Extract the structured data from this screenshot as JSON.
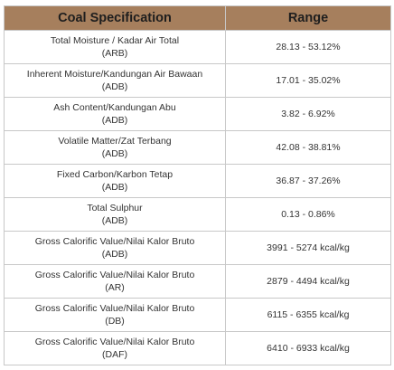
{
  "table": {
    "headers": {
      "parameter": "Coal Specification",
      "range": "Range"
    },
    "rows": [
      {
        "name": "Total  Moisture / Kadar Air Total",
        "basis": "(ARB)",
        "range": "28.13 - 53.12%"
      },
      {
        "name": "Inherent Moisture/Kandungan Air Bawaan",
        "basis": "(ADB)",
        "range": "17.01 - 35.02%"
      },
      {
        "name": "Ash Content/Kandungan Abu",
        "basis": "(ADB)",
        "range": "3.82 - 6.92%"
      },
      {
        "name": "Volatile Matter/Zat Terbang",
        "basis": "(ADB)",
        "range": "42.08 - 38.81%"
      },
      {
        "name": "Fixed Carbon/Karbon Tetap",
        "basis": "(ADB)",
        "range": "36.87 - 37.26%"
      },
      {
        "name": "Total Sulphur",
        "basis": "(ADB)",
        "range": "0.13 - 0.86%"
      },
      {
        "name": "Gross Calorific Value/Nilai Kalor Bruto",
        "basis": "(ADB)",
        "range": "3991 - 5274 kcal/kg"
      },
      {
        "name": "Gross Calorific Value/Nilai Kalor Bruto",
        "basis": "(AR)",
        "range": "2879 - 4494 kcal/kg"
      },
      {
        "name": "Gross Calorific Value/Nilai Kalor Bruto",
        "basis": "(DB)",
        "range": "6115 - 6355 kcal/kg"
      },
      {
        "name": "Gross Calorific Value/Nilai Kalor Bruto",
        "basis": "(DAF)",
        "range": "6410 - 6933 kcal/kg"
      }
    ]
  }
}
